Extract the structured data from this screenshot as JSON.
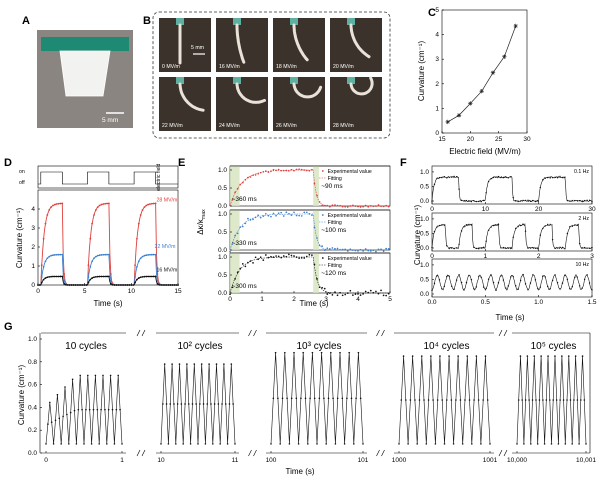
{
  "panels": {
    "A": {
      "label": "A",
      "scale": "5 mm"
    },
    "B": {
      "label": "B",
      "scale": "5 mm",
      "photos": [
        "0 MV/m",
        "16 MV/m",
        "18 MV/m",
        "20 MV/m",
        "22 MV/m",
        "24 MV/m",
        "26 MV/m",
        "28 MV/m"
      ]
    },
    "C": {
      "label": "C"
    },
    "D": {
      "label": "D",
      "ef_label": "electric field",
      "on": "on",
      "off": "off"
    },
    "E": {
      "label": "E"
    },
    "F": {
      "label": "F"
    },
    "G": {
      "label": "G"
    }
  },
  "chart_data": [
    {
      "id": "C",
      "type": "line",
      "xlabel": "Electric field (MV/m)",
      "ylabel": "Curvature (cm⁻¹)",
      "xlim": [
        15,
        30
      ],
      "ylim": [
        0,
        5
      ],
      "xticks": [
        "15",
        "20",
        "25",
        "30"
      ],
      "yticks": [
        "0",
        "1",
        "2",
        "3",
        "4",
        "5"
      ],
      "x": [
        16,
        18,
        20,
        22,
        24,
        26,
        28
      ],
      "y": [
        0.45,
        0.72,
        1.2,
        1.7,
        2.45,
        3.1,
        4.35
      ]
    },
    {
      "id": "D",
      "type": "line",
      "xlabel": "Time (s)",
      "ylabel": "Curvature (cm⁻¹)",
      "xlim": [
        0,
        15
      ],
      "ylim": [
        0,
        5
      ],
      "xticks": [
        "0",
        "5",
        "10",
        "15"
      ],
      "yticks": [
        "0",
        "1",
        "2",
        "3",
        "4"
      ],
      "on_intervals": [
        [
          0.3,
          2.6
        ],
        [
          5.3,
          7.6
        ],
        [
          10.3,
          12.6
        ]
      ],
      "series": [
        {
          "name": "28 MV/m",
          "color": "#e0403c",
          "peak": 4.3
        },
        {
          "name": "22 MV/m",
          "color": "#3d7fd0",
          "peak": 1.6
        },
        {
          "name": "16 MV/m",
          "color": "#111111",
          "peak": 0.45
        }
      ]
    },
    {
      "id": "E",
      "type": "line",
      "xlabel": "Time (s)",
      "ylabel": "Δκ/κ",
      "ylabel_sub": "max",
      "xlim": [
        0,
        5
      ],
      "ylim": [
        0,
        1
      ],
      "xticks": [
        "0",
        "1",
        "2",
        "3",
        "4",
        "5"
      ],
      "yticks": [
        "0.0",
        "0.5",
        "1.0"
      ],
      "legend": [
        "Experimental value",
        "Fitting"
      ],
      "subplots": [
        {
          "color": "#e0403c",
          "rise": "~360 ms",
          "fall": "~90 ms",
          "tau_rise": 0.36,
          "tau_fall": 0.09
        },
        {
          "color": "#3d7fd0",
          "rise": "~330 ms",
          "fall": "~100 ms",
          "tau_rise": 0.33,
          "tau_fall": 0.1
        },
        {
          "color": "#111111",
          "rise": "~300 ms",
          "fall": "~120 ms",
          "tau_rise": 0.3,
          "tau_fall": 0.12
        }
      ]
    },
    {
      "id": "F",
      "type": "line",
      "xlabel": "Time (s)",
      "ylabel": "Curvature (cm⁻¹)",
      "subplots": [
        {
          "freq": "0.1 Hz",
          "xlim": [
            0,
            30
          ],
          "xticks": [
            "0",
            "10",
            "20",
            "30"
          ],
          "yticks": [
            "0.0",
            "0.5",
            "1.0"
          ],
          "amp": 0.82
        },
        {
          "freq": "2 Hz",
          "xlim": [
            0,
            3
          ],
          "xticks": [
            "0",
            "1",
            "2",
            "3"
          ],
          "yticks": [
            "0.0",
            "0.5",
            "1.0"
          ],
          "amp": 0.8
        },
        {
          "freq": "10 Hz",
          "xlim": [
            0,
            1.5
          ],
          "xticks": [
            "0.0",
            "0.5",
            "1.0",
            "1.5"
          ],
          "yticks": [
            "0.0",
            "0.5",
            "1.0"
          ],
          "amp": 0.5
        }
      ]
    },
    {
      "id": "G",
      "type": "line",
      "xlabel": "Time (s)",
      "ylabel": "Curvature (cm⁻¹)",
      "ylim": [
        0,
        1.0
      ],
      "yticks": [
        "0.0",
        "0.2",
        "0.4",
        "0.6",
        "0.8",
        "1.0"
      ],
      "segments": [
        {
          "title": "10 cycles",
          "xstart": "0",
          "xend": "1",
          "max": 0.68
        },
        {
          "title": "10² cycles",
          "xstart": "10",
          "xend": "11",
          "max": 0.78
        },
        {
          "title": "10³ cycles",
          "xstart": "100",
          "xend": "101",
          "max": 0.88
        },
        {
          "title": "10⁴ cycles",
          "xstart": "1000",
          "xend": "1001",
          "max": 0.85
        },
        {
          "title": "10⁵ cycles",
          "xstart": "10,000",
          "xend": "10,001",
          "max": 0.85
        }
      ]
    }
  ]
}
